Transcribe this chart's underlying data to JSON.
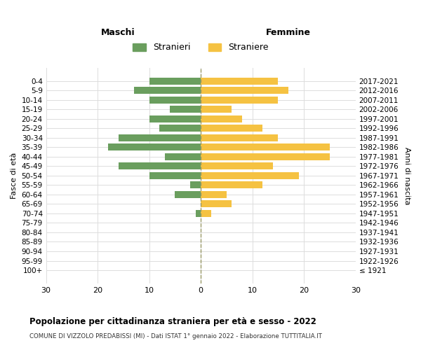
{
  "age_groups": [
    "100+",
    "95-99",
    "90-94",
    "85-89",
    "80-84",
    "75-79",
    "70-74",
    "65-69",
    "60-64",
    "55-59",
    "50-54",
    "45-49",
    "40-44",
    "35-39",
    "30-34",
    "25-29",
    "20-24",
    "15-19",
    "10-14",
    "5-9",
    "0-4"
  ],
  "birth_years": [
    "≤ 1921",
    "1922-1926",
    "1927-1931",
    "1932-1936",
    "1937-1941",
    "1942-1946",
    "1947-1951",
    "1952-1956",
    "1957-1961",
    "1962-1966",
    "1967-1971",
    "1972-1976",
    "1977-1981",
    "1982-1986",
    "1987-1991",
    "1992-1996",
    "1997-2001",
    "2002-2006",
    "2007-2011",
    "2012-2016",
    "2017-2021"
  ],
  "males": [
    0,
    0,
    0,
    0,
    0,
    0,
    1,
    0,
    5,
    2,
    10,
    16,
    7,
    18,
    16,
    8,
    10,
    6,
    10,
    13,
    10
  ],
  "females": [
    0,
    0,
    0,
    0,
    0,
    0,
    2,
    6,
    5,
    12,
    19,
    14,
    25,
    25,
    15,
    12,
    8,
    6,
    15,
    17,
    15
  ],
  "male_color": "#6a9e5e",
  "female_color": "#f5c242",
  "bar_height": 0.75,
  "xlim": 30,
  "title": "Popolazione per cittadinanza straniera per età e sesso - 2022",
  "subtitle": "COMUNE DI VIZZOLO PREDABISSI (MI) - Dati ISTAT 1° gennaio 2022 - Elaborazione TUTTITALIA.IT",
  "xlabel_left": "Maschi",
  "xlabel_right": "Femmine",
  "ylabel_left": "Fasce di età",
  "ylabel_right": "Anni di nascita",
  "legend_males": "Stranieri",
  "legend_females": "Straniere",
  "background_color": "#ffffff",
  "grid_color": "#dddddd"
}
